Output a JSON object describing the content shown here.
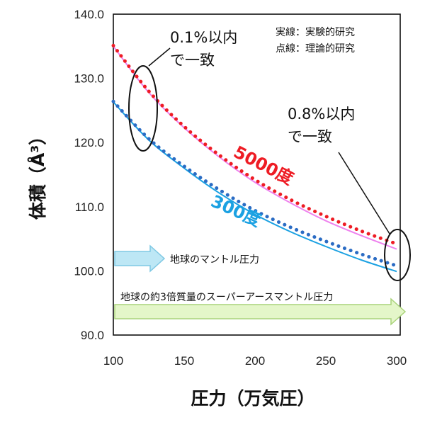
{
  "chart_data": {
    "type": "line",
    "xlabel": "圧力（万気圧）",
    "ylabel": "体積（Å³）",
    "xlim": [
      100,
      300
    ],
    "ylim": [
      90,
      140
    ],
    "x_ticks": [
      "100",
      "150",
      "200",
      "250",
      "300"
    ],
    "y_ticks": [
      "90.0",
      "100.0",
      "110.0",
      "120.0",
      "130.0",
      "140.0"
    ],
    "grid": false,
    "legend_lines": [
      "実線：実験的研究",
      "点線：理論的研究"
    ],
    "series": [
      {
        "name": "5000度",
        "style": "solid",
        "color": "#ee82ee",
        "x": [
          100,
          125,
          150,
          175,
          200,
          225,
          250,
          275,
          300
        ],
        "values": [
          135.0,
          127.8,
          122.3,
          117.7,
          113.8,
          110.6,
          107.8,
          105.5,
          103.4
        ]
      },
      {
        "name": "5000度",
        "style": "dotted",
        "color": "#ee1c24",
        "x": [
          100,
          125,
          150,
          175,
          200,
          225,
          250,
          275,
          300
        ],
        "values": [
          135.1,
          128.0,
          122.5,
          118.0,
          114.2,
          111.1,
          108.5,
          106.2,
          104.2
        ]
      },
      {
        "name": "300度",
        "style": "solid",
        "color": "#1ba1e2",
        "x": [
          100,
          125,
          150,
          175,
          200,
          225,
          250,
          275,
          300
        ],
        "values": [
          126.3,
          120.4,
          116.0,
          112.1,
          108.8,
          106.1,
          103.8,
          101.7,
          99.9
        ]
      },
      {
        "name": "300度",
        "style": "dotted",
        "color": "#2b6cc4",
        "x": [
          100,
          125,
          150,
          175,
          200,
          225,
          250,
          275,
          300
        ],
        "values": [
          126.4,
          120.6,
          116.3,
          112.6,
          109.4,
          106.8,
          104.6,
          102.6,
          100.8
        ]
      }
    ],
    "annotations": [
      {
        "lines": [
          "0.1%以内",
          "で一致"
        ]
      },
      {
        "lines": [
          "0.8%以内",
          "で一致"
        ]
      }
    ],
    "series_labels": [
      {
        "text": "5000度",
        "color": "#ee1c24"
      },
      {
        "text": "300度",
        "color": "#1ba1e2"
      }
    ],
    "pressure_arrows": [
      {
        "label": "地球のマントル圧力",
        "x_end": 130,
        "fill": "#bde7f5",
        "stroke": "#7ec8e3"
      },
      {
        "label": "地球の約3倍質量のスーパーアースマントル圧力",
        "x_end": 300,
        "fill": "#e4f6c9",
        "stroke": "#a9d37a"
      }
    ]
  }
}
